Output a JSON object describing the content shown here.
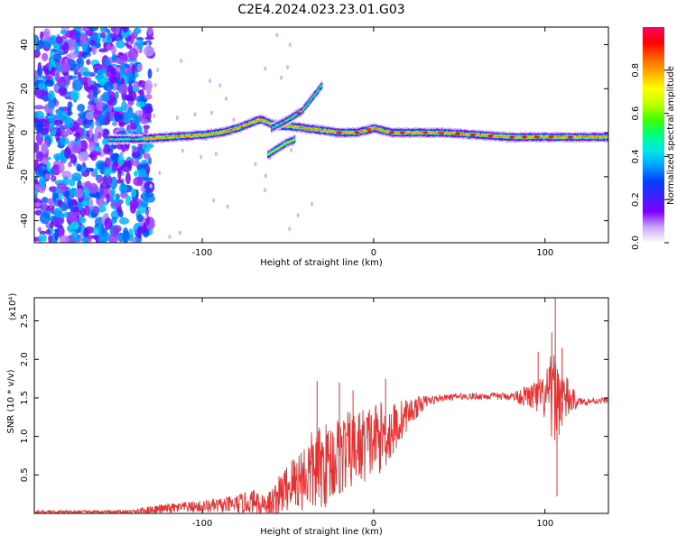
{
  "chart_data": [
    {
      "type": "heatmap",
      "title": "C2E4.2024.023.23.01.G03",
      "xlabel": "Height of straight line (km)",
      "ylabel": "Frequency (Hz)",
      "xlim": [
        -198,
        137
      ],
      "ylim": [
        -50,
        48
      ],
      "xticks": [
        -100,
        0,
        100
      ],
      "yticks": [
        -40,
        -20,
        0,
        20,
        40
      ],
      "colorbar": {
        "label": "Normalized spectral amplitude",
        "range": [
          0,
          1
        ],
        "ticks": [
          0.0,
          0.2,
          0.4,
          0.6,
          0.8
        ],
        "colors": [
          "#ffffff",
          "#c8a8ff",
          "#8000ff",
          "#4020ff",
          "#0040ff",
          "#00a0ff",
          "#00e8e8",
          "#00ff80",
          "#40ff00",
          "#c0ff00",
          "#ffff00",
          "#ffb000",
          "#ff6000",
          "#ff0000",
          "#ff0066"
        ]
      },
      "features": {
        "main_track": [
          [
            -155,
            -3
          ],
          [
            -140,
            -3
          ],
          [
            -120,
            -2
          ],
          [
            -100,
            -1
          ],
          [
            -90,
            0
          ],
          [
            -80,
            2
          ],
          [
            -70,
            5
          ],
          [
            -66,
            6
          ],
          [
            -60,
            4
          ],
          [
            -55,
            3
          ],
          [
            -50,
            3
          ],
          [
            -40,
            2
          ],
          [
            -30,
            1
          ],
          [
            -20,
            0
          ],
          [
            -10,
            0
          ],
          [
            0,
            2
          ],
          [
            10,
            0
          ],
          [
            20,
            0
          ],
          [
            40,
            0
          ],
          [
            60,
            -1
          ],
          [
            80,
            -2
          ],
          [
            100,
            -2
          ],
          [
            110,
            -2
          ],
          [
            137,
            -2
          ]
        ],
        "upper_branch": [
          [
            -60,
            2
          ],
          [
            -50,
            6
          ],
          [
            -42,
            10
          ],
          [
            -36,
            16
          ],
          [
            -30,
            22
          ]
        ],
        "lower_branch": [
          [
            -62,
            -10
          ],
          [
            -58,
            -8
          ],
          [
            -52,
            -5
          ],
          [
            -46,
            -3
          ]
        ]
      }
    },
    {
      "type": "line",
      "xlabel": "Height of straight line (km)",
      "ylabel": "SNR (10 * v/v)",
      "yunit_label": "(x10⁴)",
      "xlim": [
        -198,
        137
      ],
      "ylim": [
        0,
        2.8
      ],
      "xticks": [
        -100,
        0,
        100
      ],
      "yticks": [
        0.5,
        1.0,
        1.5,
        2.0,
        2.5
      ],
      "series": [
        {
          "color": "#e83030",
          "baseline": [
            [
              -198,
              0.02
            ],
            [
              -140,
              0.02
            ],
            [
              -130,
              0.05
            ],
            [
              -110,
              0.08
            ],
            [
              -90,
              0.1
            ],
            [
              -80,
              0.12
            ],
            [
              -70,
              0.15
            ],
            [
              -60,
              0.12
            ],
            [
              -50,
              0.35
            ],
            [
              -40,
              0.5
            ],
            [
              -30,
              0.6
            ],
            [
              -20,
              0.75
            ],
            [
              -10,
              0.85
            ],
            [
              0,
              0.95
            ],
            [
              10,
              1.05
            ],
            [
              20,
              1.3
            ],
            [
              30,
              1.45
            ],
            [
              40,
              1.5
            ],
            [
              50,
              1.52
            ],
            [
              60,
              1.52
            ],
            [
              80,
              1.52
            ],
            [
              90,
              1.52
            ],
            [
              100,
              1.5
            ],
            [
              110,
              1.5
            ],
            [
              120,
              1.45
            ],
            [
              137,
              1.47
            ]
          ],
          "noise": [
            [
              -198,
              0.02
            ],
            [
              -150,
              0.02
            ],
            [
              -130,
              0.05
            ],
            [
              -100,
              0.08
            ],
            [
              -80,
              0.12
            ],
            [
              -60,
              0.2
            ],
            [
              -45,
              0.4
            ],
            [
              -35,
              0.55
            ],
            [
              -20,
              0.55
            ],
            [
              -10,
              0.5
            ],
            [
              0,
              0.5
            ],
            [
              10,
              0.4
            ],
            [
              20,
              0.2
            ],
            [
              30,
              0.08
            ],
            [
              40,
              0.04
            ],
            [
              80,
              0.05
            ],
            [
              90,
              0.15
            ],
            [
              100,
              0.3
            ],
            [
              104,
              0.6
            ],
            [
              108,
              0.5
            ],
            [
              115,
              0.2
            ],
            [
              120,
              0.05
            ],
            [
              137,
              0.04
            ]
          ],
          "spikes": [
            [
              -33,
              1.72
            ],
            [
              -20,
              1.7
            ],
            [
              -12,
              1.6
            ],
            [
              7,
              1.75
            ],
            [
              96,
              2.1
            ],
            [
              104,
              2.35
            ],
            [
              106,
              2.8
            ],
            [
              107,
              0.22
            ],
            [
              110,
              2.15
            ]
          ]
        }
      ]
    }
  ]
}
